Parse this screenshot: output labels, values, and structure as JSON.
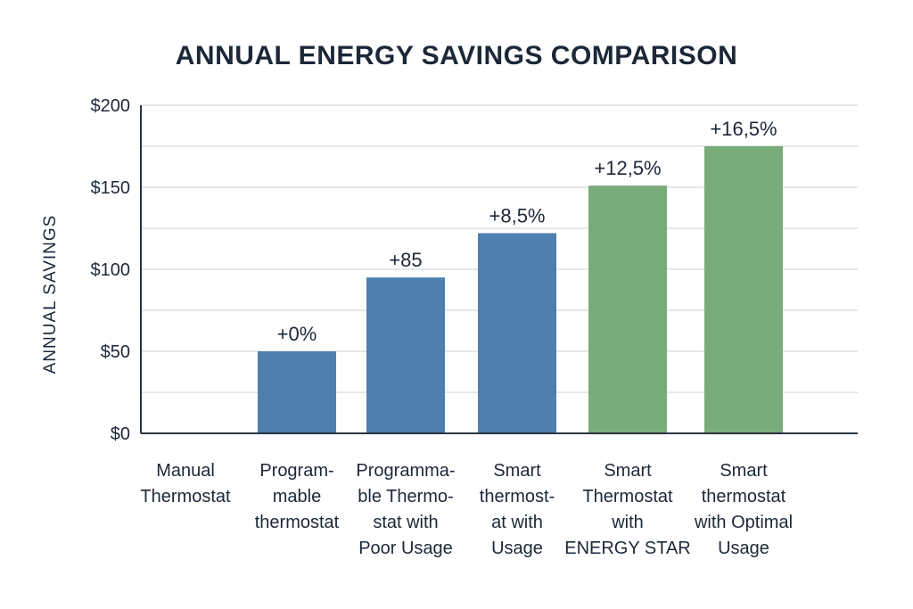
{
  "chart_data": {
    "type": "bar",
    "title": "ANNUAL ENERGY SAVINGS COMPARISON",
    "xlabel": "",
    "ylabel": "ANNUAL SAVINGS",
    "ylim": [
      0,
      200
    ],
    "yticks": [
      0,
      50,
      100,
      150,
      200
    ],
    "ytick_labels": [
      "$0",
      "$50",
      "$100",
      "$150",
      "$200"
    ],
    "minor_gridlines": [
      25,
      75,
      125,
      175
    ],
    "grid": true,
    "legend": "none",
    "categories": [
      [
        "Manual",
        "Thermostat"
      ],
      [
        "Program-",
        "mable",
        "thermostat"
      ],
      [
        "Programma-",
        "ble Thermo-",
        "stat with",
        "Poor Usage"
      ],
      [
        "Smart",
        "thermost-",
        "at with",
        "Usage"
      ],
      [
        "Smart",
        "Thermostat",
        "with",
        "ENERGY STAR"
      ],
      [
        "Smart",
        "thermostat",
        "with Optimal",
        "Usage"
      ]
    ],
    "values": [
      0,
      50,
      95,
      122,
      151,
      175
    ],
    "data_labels": [
      "",
      "+0%",
      "+85",
      "+8,5%",
      "+12,5%",
      "+16,5%"
    ],
    "bar_colors": [
      "#4f7fae",
      "#4f7fae",
      "#4f7fae",
      "#4f7fae",
      "#7aab7a",
      "#7aab7a"
    ]
  }
}
